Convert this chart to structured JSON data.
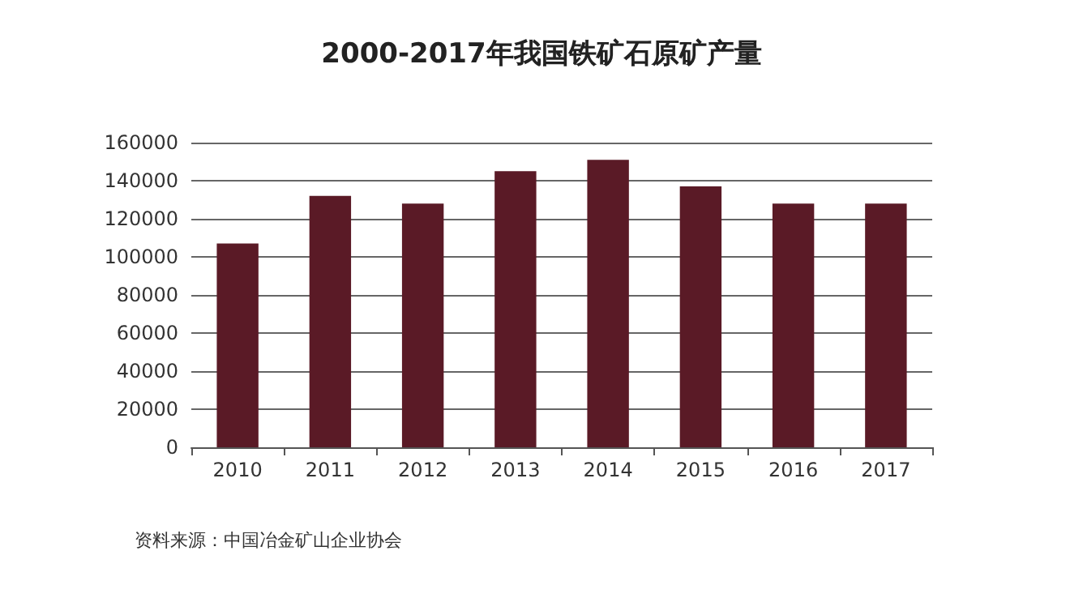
{
  "chart_data": {
    "type": "bar",
    "title": "2000-2017年我国铁矿石原矿产量",
    "categories": [
      "2010",
      "2011",
      "2012",
      "2013",
      "2014",
      "2015",
      "2016",
      "2017"
    ],
    "values": [
      107000,
      132000,
      128000,
      145000,
      151000,
      137000,
      128000,
      128000
    ],
    "color": "#5a1a26",
    "ylim": [
      0,
      160000
    ],
    "yticks": [
      0,
      20000,
      40000,
      60000,
      80000,
      100000,
      120000,
      140000,
      160000
    ],
    "grid": "y",
    "annotations": [
      "资料来源：中国冶金矿山企业协会"
    ]
  }
}
